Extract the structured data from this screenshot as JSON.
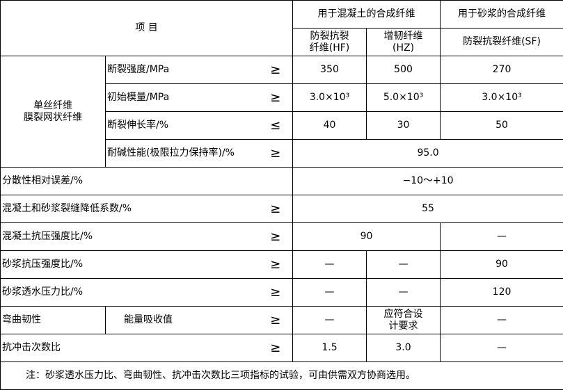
{
  "header": {
    "item": "项 目",
    "concrete_group": "用于混凝土的合成纤维",
    "mortar_group": "用于砂浆的合成纤维",
    "hf": [
      "防裂抗裂",
      "纤维(HF)"
    ],
    "hz": [
      "增韧纤维",
      "(HZ)"
    ],
    "sf": "防裂抗裂纤维(SF)"
  },
  "fiber_group": [
    "单丝纤维",
    "膜裂网状纤维"
  ],
  "rows": {
    "tensile": {
      "label": "断裂强度/MPa",
      "sign": "≥",
      "hf": "350",
      "hz": "500",
      "sf": "270"
    },
    "modulus": {
      "label": "初始模量/MPa",
      "sign": "≥",
      "hf": "3.0×10³",
      "hz": "5.0×10³",
      "sf": "3.0×10³"
    },
    "elongation": {
      "label": "断裂伸长率/%",
      "sign": "≤",
      "hf": "40",
      "hz": "30",
      "sf": "50"
    },
    "alkali": {
      "label": "耐碱性能(极限拉力保持率)/%",
      "sign": "≥",
      "value": "95.0"
    },
    "dispersion": {
      "label": "分散性相对误差/%",
      "value": "−10～+10"
    },
    "crack": {
      "label": "混凝土和砂浆裂缝降低系数/%",
      "sign": "≥",
      "value": "55"
    },
    "concrete_comp": {
      "label": "混凝土抗压强度比/%",
      "sign": "≥",
      "value": "90",
      "sf": "—"
    },
    "mortar_comp": {
      "label": "砂浆抗压强度比/%",
      "sign": "≥",
      "hf": "—",
      "hz": "—",
      "sf": "90"
    },
    "mortar_perm": {
      "label": "砂浆透水压力比/%",
      "sign": "≥",
      "hf": "—",
      "hz": "—",
      "sf": "120"
    },
    "toughness": {
      "group": "弯曲韧性",
      "label": "能量吸收值",
      "sign": "≥",
      "hf": "—",
      "hz": [
        "应符合设",
        "计要求"
      ],
      "sf": "—"
    },
    "impact": {
      "label": "抗冲击次数比",
      "sign": "≥",
      "hf": "1.5",
      "hz": "3.0",
      "sf": "—"
    }
  },
  "note": "注：砂浆透水压力比、弯曲韧性、抗冲击次数比三项指标的试验，可由供需双方协商选用。"
}
